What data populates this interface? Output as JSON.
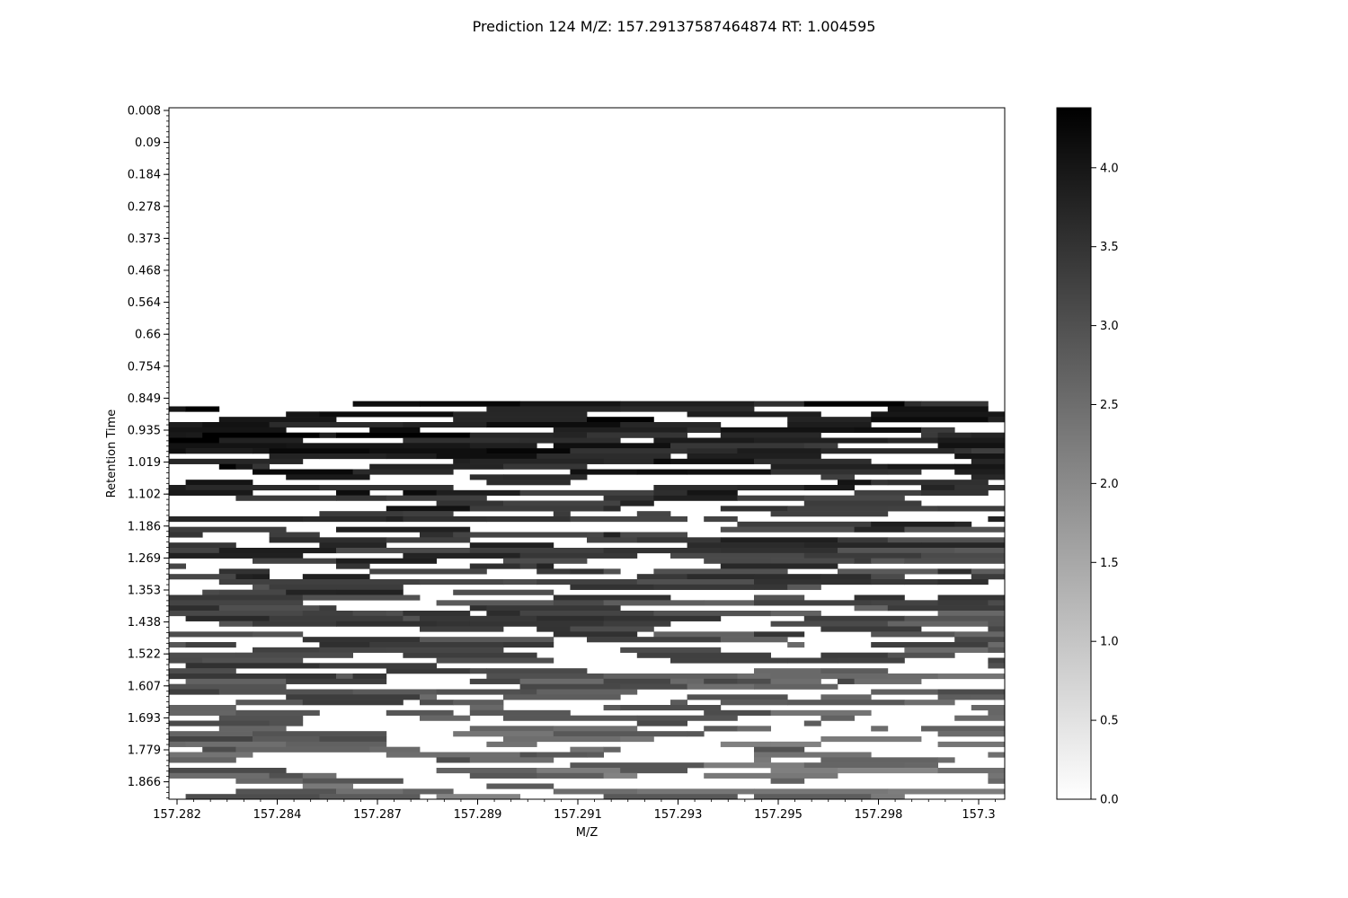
{
  "chart_data": {
    "type": "heatmap",
    "title": "Prediction 124 M/Z: 157.29137587464874  RT: 1.004595",
    "xlabel": "M/Z",
    "ylabel": "Retention Time",
    "x_ticks": [
      "157.282",
      "157.284",
      "157.287",
      "157.289",
      "157.291",
      "157.293",
      "157.295",
      "157.298",
      "157.3"
    ],
    "y_ticks": [
      "0.008",
      "0.09",
      "0.184",
      "0.278",
      "0.373",
      "0.468",
      "0.564",
      "0.66",
      "0.754",
      "0.849",
      "0.935",
      "1.019",
      "1.102",
      "1.186",
      "1.269",
      "1.353",
      "1.438",
      "1.522",
      "1.607",
      "1.693",
      "1.779",
      "1.866"
    ],
    "colorbar": {
      "ticks": [
        "0.0",
        "0.5",
        "1.0",
        "1.5",
        "2.0",
        "2.5",
        "3.0",
        "3.5",
        "4.0"
      ],
      "range": [
        0,
        4.38
      ],
      "colormap": "gray_r"
    },
    "xlim": [
      157.282,
      157.3005
    ],
    "ylim": [
      0.008,
      1.9
    ],
    "grid": "50 m/z bins x 132 retention-time rows",
    "signal_region": "retention time ~0.86 to ~1.9 (upper rows empty)",
    "colors": {
      "empty": "#ffffff",
      "max": "#000000",
      "frame": "#000000"
    }
  }
}
